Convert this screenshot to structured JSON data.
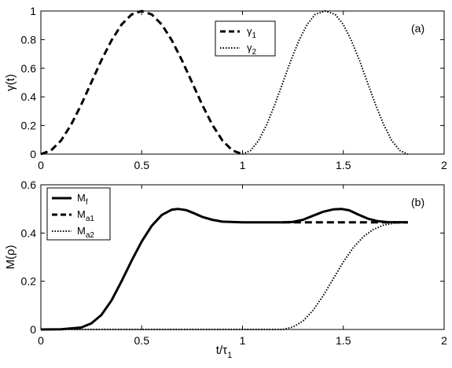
{
  "chart_data": [
    {
      "type": "line",
      "panel_label": "(a)",
      "ylabel": "γ(t)",
      "xlabel": "",
      "xlim": [
        0,
        2
      ],
      "ylim": [
        0,
        1
      ],
      "xticks": [
        "0",
        "0.5",
        "1",
        "1.5",
        "2"
      ],
      "yticks": [
        "0",
        "0.2",
        "0.4",
        "0.6",
        "0.8",
        "1"
      ],
      "legend_position": "top-center",
      "grid": false,
      "series": [
        {
          "name": "γ1",
          "name_base": "γ",
          "name_sub": "1",
          "style": "dashed",
          "x": [
            0,
            0.05,
            0.1,
            0.15,
            0.2,
            0.25,
            0.3,
            0.35,
            0.4,
            0.45,
            0.5,
            0.55,
            0.6,
            0.65,
            0.7,
            0.75,
            0.8,
            0.85,
            0.9,
            0.95,
            1.0
          ],
          "y": [
            0,
            0.025,
            0.095,
            0.206,
            0.345,
            0.5,
            0.655,
            0.794,
            0.905,
            0.976,
            1.0,
            0.976,
            0.905,
            0.794,
            0.655,
            0.5,
            0.345,
            0.206,
            0.095,
            0.025,
            0
          ]
        },
        {
          "name": "γ2",
          "name_base": "γ",
          "name_sub": "2",
          "style": "dotted",
          "x": [
            1.0,
            1.04,
            1.08,
            1.12,
            1.16,
            1.2,
            1.24,
            1.28,
            1.32,
            1.36,
            1.41,
            1.46,
            1.5,
            1.54,
            1.58,
            1.62,
            1.66,
            1.7,
            1.74,
            1.78,
            1.82
          ],
          "y": [
            0,
            0.025,
            0.095,
            0.206,
            0.345,
            0.5,
            0.655,
            0.794,
            0.905,
            0.976,
            1.0,
            0.976,
            0.905,
            0.794,
            0.655,
            0.5,
            0.345,
            0.206,
            0.095,
            0.025,
            0
          ]
        }
      ]
    },
    {
      "type": "line",
      "panel_label": "(b)",
      "ylabel": "M(ρ)",
      "xlabel": "t/τ1",
      "xlabel_base": "t/τ",
      "xlabel_sub": "1",
      "xlim": [
        0,
        2
      ],
      "ylim": [
        0,
        0.6
      ],
      "xticks": [
        "0",
        "0.5",
        "1",
        "1.5",
        "2"
      ],
      "yticks": [
        "0",
        "0.2",
        "0.4",
        "0.6"
      ],
      "legend_position": "top-left",
      "grid": false,
      "series": [
        {
          "name": "Mf",
          "name_base": "M",
          "name_sub": "f",
          "style": "solid",
          "x": [
            0,
            0.1,
            0.2,
            0.25,
            0.3,
            0.35,
            0.4,
            0.45,
            0.5,
            0.55,
            0.6,
            0.65,
            0.68,
            0.72,
            0.76,
            0.8,
            0.85,
            0.9,
            1.0,
            1.1,
            1.2,
            1.25,
            1.3,
            1.35,
            1.4,
            1.45,
            1.49,
            1.53,
            1.57,
            1.62,
            1.67,
            1.72,
            1.82
          ],
          "y": [
            0,
            0.001,
            0.008,
            0.025,
            0.06,
            0.12,
            0.2,
            0.285,
            0.365,
            0.43,
            0.475,
            0.497,
            0.5,
            0.495,
            0.482,
            0.467,
            0.455,
            0.447,
            0.444,
            0.444,
            0.444,
            0.446,
            0.455,
            0.472,
            0.488,
            0.498,
            0.5,
            0.494,
            0.478,
            0.46,
            0.449,
            0.445,
            0.444
          ]
        },
        {
          "name": "Ma1",
          "name_base": "M",
          "name_sub": "a1",
          "style": "dashed",
          "x": [
            1.2,
            1.82
          ],
          "y": [
            0.444,
            0.444
          ]
        },
        {
          "name": "Ma2",
          "name_base": "M",
          "name_sub": "a2",
          "style": "dotted",
          "x": [
            0,
            1.2,
            1.25,
            1.3,
            1.35,
            1.4,
            1.45,
            1.5,
            1.55,
            1.6,
            1.65,
            1.7,
            1.75,
            1.82
          ],
          "y": [
            0,
            0,
            0.01,
            0.035,
            0.08,
            0.14,
            0.21,
            0.28,
            0.34,
            0.385,
            0.415,
            0.433,
            0.441,
            0.444
          ]
        }
      ]
    }
  ]
}
